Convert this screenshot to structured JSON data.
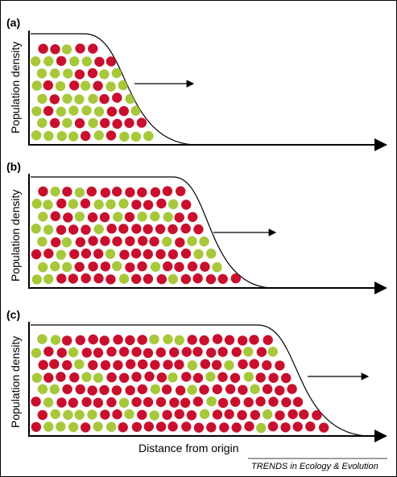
{
  "y_axis_label": "Population density",
  "x_axis_label": "Distance from origin",
  "footer_source": "TRENDS in Ecology & Evolution",
  "colors": {
    "red_dot": "#c8102e",
    "green_dot": "#a7c83a",
    "axis": "#000000"
  },
  "panels": [
    {
      "letter": "(a)"
    },
    {
      "letter": "(b)"
    },
    {
      "letter": "(c)"
    }
  ]
}
